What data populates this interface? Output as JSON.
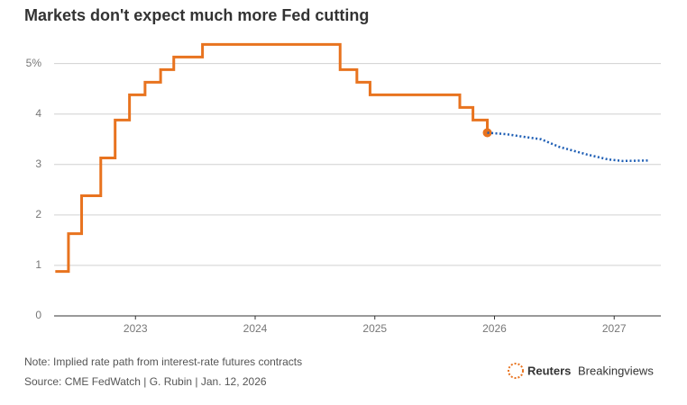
{
  "chart_data": {
    "type": "line",
    "title": "Markets don't expect much more Fed cutting",
    "note": "Note: Implied rate path from interest-rate futures contracts",
    "source": "Source: CME FedWatch | G. Rubin | Jan. 12, 2026",
    "brand": [
      "Reuters",
      "Breakingviews"
    ],
    "xlim": [
      2022.32,
      2027.39
    ],
    "xticks": [
      2023,
      2024,
      2025,
      2026,
      2027
    ],
    "ylim": [
      0,
      5.35
    ],
    "yticks": [
      0,
      1,
      2,
      3,
      4,
      {
        "value": 5,
        "label": "5%"
      }
    ],
    "grid": true,
    "series": [
      {
        "color": "#e8731f",
        "step": "post",
        "x": [
          2022.33,
          2022.44,
          2022.55,
          2022.71,
          2022.83,
          2022.95,
          2023.08,
          2023.21,
          2023.32,
          2023.56,
          2024.71,
          2024.85,
          2024.96,
          2025.71,
          2025.82,
          2025.94
        ],
        "values": [
          0.88,
          1.63,
          2.38,
          3.13,
          3.88,
          4.38,
          4.63,
          4.88,
          5.13,
          5.38,
          4.88,
          4.63,
          4.38,
          4.13,
          3.88,
          3.63
        ]
      },
      {
        "color": "#1f5fb5",
        "dotted": true,
        "x": [
          2025.94,
          2026.1,
          2026.24,
          2026.39,
          2026.54,
          2026.77,
          2026.95,
          2027.07,
          2027.29
        ],
        "values": [
          3.63,
          3.6,
          3.55,
          3.5,
          3.35,
          3.2,
          3.1,
          3.07,
          3.08
        ]
      }
    ]
  }
}
